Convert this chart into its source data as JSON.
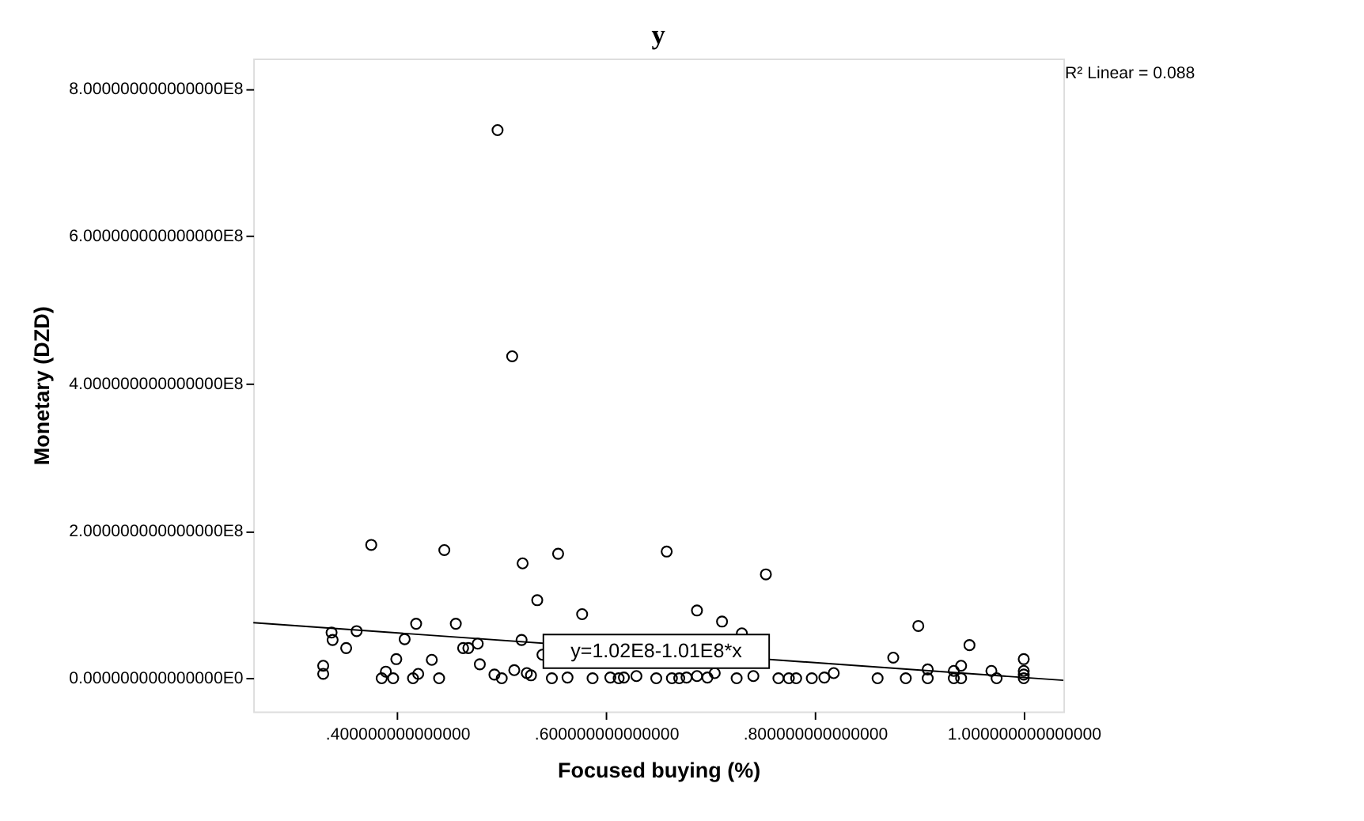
{
  "chart_data": {
    "type": "scatter",
    "title": "y",
    "xlabel": "Focused buying (%)",
    "ylabel": "Monetary (DZD)",
    "xlim": [
      0.262,
      1.038
    ],
    "ylim": [
      -45000000,
      841000000
    ],
    "xticks": [
      {
        "value": 0.4,
        "label": ".400000000000000"
      },
      {
        "value": 0.6,
        "label": ".600000000000000"
      },
      {
        "value": 0.8,
        "label": ".800000000000000"
      },
      {
        "value": 1.0,
        "label": "1.000000000000000"
      }
    ],
    "yticks": [
      {
        "value": 0,
        "label": "0.000000000000000E0"
      },
      {
        "value": 200000000,
        "label": "2.000000000000000E8"
      },
      {
        "value": 400000000,
        "label": "4.000000000000000E8"
      },
      {
        "value": 600000000,
        "label": "6.000000000000000E8"
      },
      {
        "value": 800000000,
        "label": "8.000000000000000E8"
      }
    ],
    "grid": false,
    "marker": "circle",
    "series": [
      {
        "color": "#000000",
        "x": [
          0.496,
          0.51,
          0.375,
          0.445,
          0.52,
          0.554,
          0.658,
          0.534,
          0.577,
          0.687,
          0.711,
          0.753,
          0.899,
          0.948,
          0.875,
          0.908,
          0.337,
          0.338,
          0.351,
          0.361,
          0.329,
          0.329,
          0.385,
          0.389,
          0.396,
          0.399,
          0.407,
          0.418,
          0.415,
          0.42,
          0.433,
          0.44,
          0.456,
          0.463,
          0.468,
          0.477,
          0.479,
          0.493,
          0.5,
          0.512,
          0.519,
          0.524,
          0.528,
          0.539,
          0.548,
          0.563,
          0.587,
          0.604,
          0.612,
          0.617,
          0.629,
          0.648,
          0.663,
          0.67,
          0.677,
          0.687,
          0.697,
          0.704,
          0.725,
          0.73,
          0.741,
          0.765,
          0.775,
          0.782,
          0.797,
          0.809,
          0.818,
          0.86,
          0.887,
          0.933,
          0.933,
          0.94,
          0.969,
          0.974,
          1.0,
          1.0,
          1.0,
          1.0,
          0.908,
          0.94
        ],
        "values": [
          744000000,
          437000000,
          181000000,
          174000000,
          156000000,
          169000000,
          172000000,
          106000000,
          87000000,
          92000000,
          77000000,
          141000000,
          71000000,
          45000000,
          28000000,
          12000000,
          62000000,
          52000000,
          41000000,
          64000000,
          17000000,
          6000000,
          0,
          9000000,
          0,
          26000000,
          53000000,
          74000000,
          0,
          6000000,
          25000000,
          0,
          74000000,
          41000000,
          41000000,
          47000000,
          19000000,
          5000000,
          0,
          11000000,
          52000000,
          7000000,
          4000000,
          32000000,
          0,
          1000000,
          0,
          1000000,
          0,
          1000000,
          3000000,
          0,
          0,
          0,
          1000000,
          3000000,
          1000000,
          7000000,
          0,
          61000000,
          3000000,
          0,
          0,
          0,
          0,
          1000000,
          7000000,
          0,
          0,
          10000000,
          0,
          17000000,
          10000000,
          0,
          26000000,
          10000000,
          5000000,
          0,
          0,
          0
        ]
      },
      {
        "type": "line",
        "color": "#000000",
        "line_style": "solid",
        "marker": "none",
        "x": [
          0.262,
          1.038
        ],
        "values": [
          75500000,
          -2800000
        ]
      }
    ],
    "annotations": [
      "R² Linear = 0.088",
      {
        "text": "y=1.02E8-1.01E8*x",
        "x": 0.648,
        "y": 36500000
      }
    ]
  }
}
